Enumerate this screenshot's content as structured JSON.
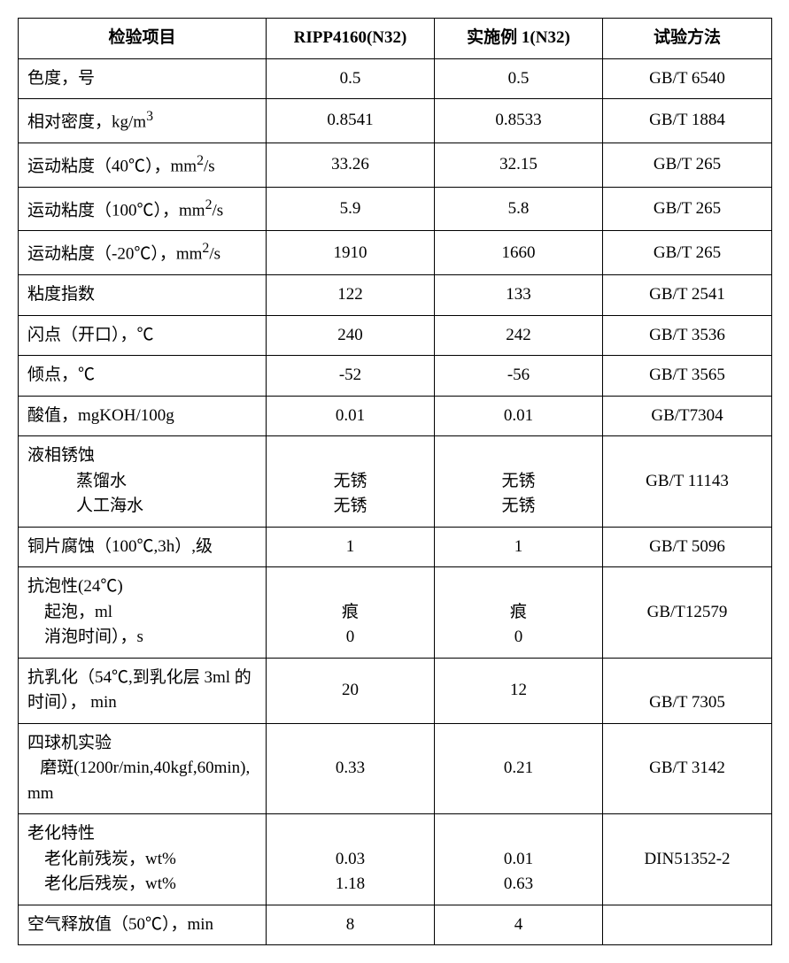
{
  "table": {
    "headers": [
      "检验项目",
      "RIPP4160(N32)",
      "实施例 1(N32)",
      "试验方法"
    ],
    "rows": [
      {
        "label_html": "色度，号",
        "v1": "0.5",
        "v2": "0.5",
        "method": "GB/T 6540"
      },
      {
        "label_html": "相对密度，kg/m<sup>3</sup>",
        "v1": "0.8541",
        "v2": "0.8533",
        "method": "GB/T 1884"
      },
      {
        "label_html": "运动粘度（40℃），mm<sup>2</sup>/s",
        "v1": "33.26",
        "v2": "32.15",
        "method": "GB/T 265"
      },
      {
        "label_html": "运动粘度（100℃），mm<sup>2</sup>/s",
        "v1": "5.9",
        "v2": "5.8",
        "method": "GB/T 265"
      },
      {
        "label_html": "运动粘度（-20℃），mm<sup>2</sup>/s",
        "v1": "1910",
        "v2": "1660",
        "method": "GB/T 265"
      },
      {
        "label_html": "粘度指数",
        "v1": "122",
        "v2": "133",
        "method": "GB/T 2541"
      },
      {
        "label_html": "闪点（开口），℃",
        "v1": "240",
        "v2": "242",
        "method": "GB/T 3536"
      },
      {
        "label_html": "倾点，℃",
        "v1": "-52",
        "v2": "-56",
        "method": "GB/T 3565"
      },
      {
        "label_html": "酸值，mgKOH/100g",
        "v1": "0.01",
        "v2": "0.01",
        "method": "GB/T7304"
      },
      {
        "label_html": "液相锈蚀<br><span class=\"indent\">蒸馏水</span><span class=\"indent\">人工海水</span>",
        "v1": "\n无锈\n无锈",
        "v2": "\n无锈\n无锈",
        "method": "GB/T 11143"
      },
      {
        "label_html": "铜片腐蚀（100℃,3h）,级",
        "v1": "1",
        "v2": "1",
        "method": "GB/T 5096"
      },
      {
        "label_html": "抗泡性(24℃)<br>&nbsp;&nbsp;&nbsp;&nbsp;起泡，ml<br>&nbsp;&nbsp;&nbsp;&nbsp;消泡时间），s",
        "v1": "\n痕\n0",
        "v2": "\n痕\n0",
        "method": "GB/T12579"
      },
      {
        "label_html": "抗乳化（54℃,到乳化层 3ml 的时间）， min",
        "v1": "20",
        "v2": "12",
        "method": "GB/T 7305",
        "method_valign": "bottom"
      },
      {
        "label_html": "四球机实验<br>&nbsp;&nbsp;&nbsp;磨斑(1200r/min,40kgf,60min),<br>mm",
        "v1": "0.33",
        "v2": "0.21",
        "method": "GB/T 3142"
      },
      {
        "label_html": "老化特性<br>&nbsp;&nbsp;&nbsp;&nbsp;老化前残炭，wt%<br>&nbsp;&nbsp;&nbsp;&nbsp;老化后残炭，wt%",
        "v1": "\n0.03\n1.18",
        "v2": "\n0.01\n0.63",
        "method": "DIN51352-2"
      },
      {
        "label_html": "空气释放值（50℃），min",
        "v1": "8",
        "v2": "4",
        "method": ""
      }
    ]
  }
}
